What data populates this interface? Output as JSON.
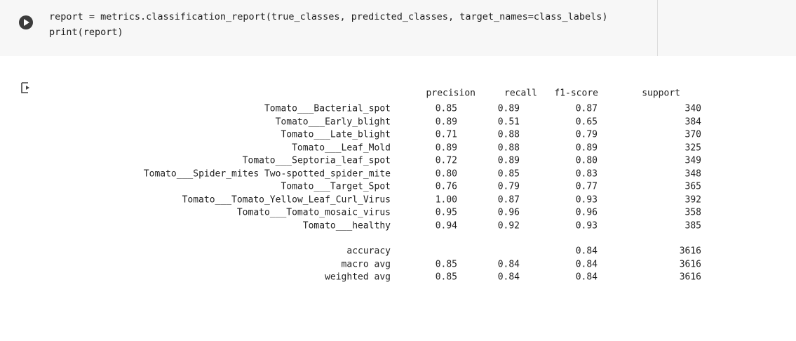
{
  "code_cell": {
    "lines": [
      "report = metrics.classification_report(true_classes, predicted_classes, target_names=class_labels)",
      "print(report)"
    ]
  },
  "output": {
    "columns": [
      "precision",
      "recall",
      "f1-score",
      "support"
    ],
    "rows": [
      {
        "label": "Tomato___Bacterial_spot",
        "precision": "0.85",
        "recall": "0.89",
        "f1-score": "0.87",
        "support": "340"
      },
      {
        "label": "Tomato___Early_blight",
        "precision": "0.89",
        "recall": "0.51",
        "f1-score": "0.65",
        "support": "384"
      },
      {
        "label": "Tomato___Late_blight",
        "precision": "0.71",
        "recall": "0.88",
        "f1-score": "0.79",
        "support": "370"
      },
      {
        "label": "Tomato___Leaf_Mold",
        "precision": "0.89",
        "recall": "0.88",
        "f1-score": "0.89",
        "support": "325"
      },
      {
        "label": "Tomato___Septoria_leaf_spot",
        "precision": "0.72",
        "recall": "0.89",
        "f1-score": "0.80",
        "support": "349"
      },
      {
        "label": "Tomato___Spider_mites Two-spotted_spider_mite",
        "precision": "0.80",
        "recall": "0.85",
        "f1-score": "0.83",
        "support": "348"
      },
      {
        "label": "Tomato___Target_Spot",
        "precision": "0.76",
        "recall": "0.79",
        "f1-score": "0.77",
        "support": "365"
      },
      {
        "label": "Tomato___Tomato_Yellow_Leaf_Curl_Virus",
        "precision": "1.00",
        "recall": "0.87",
        "f1-score": "0.93",
        "support": "392"
      },
      {
        "label": "Tomato___Tomato_mosaic_virus",
        "precision": "0.95",
        "recall": "0.96",
        "f1-score": "0.96",
        "support": "358"
      },
      {
        "label": "Tomato___healthy",
        "precision": "0.94",
        "recall": "0.92",
        "f1-score": "0.93",
        "support": "385"
      }
    ],
    "summary": [
      {
        "label": "accuracy",
        "f1-score": "0.84",
        "support": "3616"
      },
      {
        "label": "macro avg",
        "precision": "0.85",
        "recall": "0.84",
        "f1-score": "0.84",
        "support": "3616"
      },
      {
        "label": "weighted avg",
        "precision": "0.85",
        "recall": "0.84",
        "f1-score": "0.84",
        "support": "3616"
      }
    ]
  }
}
